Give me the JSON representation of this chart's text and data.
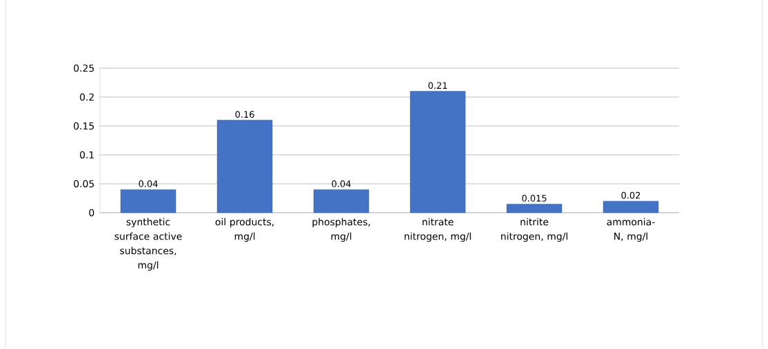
{
  "chart_data": {
    "type": "bar",
    "categories": [
      "synthetic surface active substances, mg/l",
      "oil products, mg/l",
      "phosphates, mg/l",
      "nitrate nitrogen, mg/l",
      "nitrite nitrogen, mg/l",
      "ammonia-N, mg/l"
    ],
    "values": [
      0.04,
      0.16,
      0.04,
      0.21,
      0.015,
      0.02
    ],
    "color": "#4472c4",
    "ylim": [
      0,
      0.25
    ],
    "yticks": [
      0,
      0.05,
      0.1,
      0.15,
      0.2,
      0.25
    ],
    "grid": "y",
    "data_labels": true
  }
}
